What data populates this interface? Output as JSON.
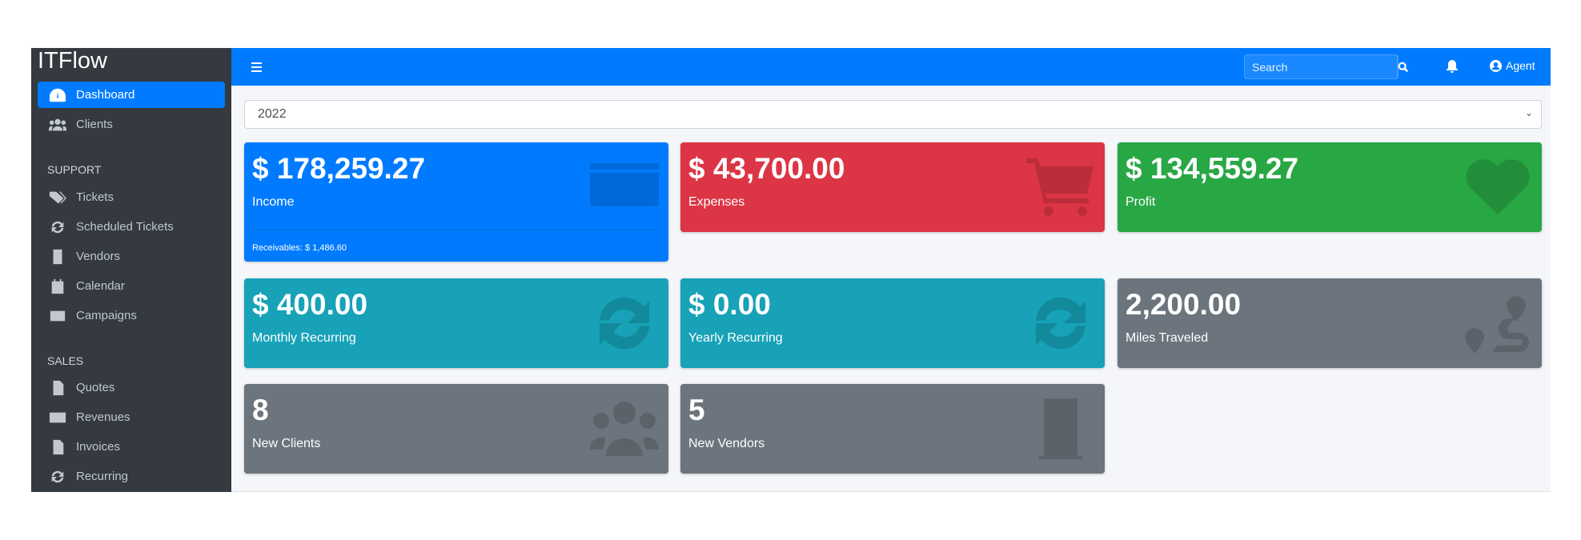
{
  "sidebar": {
    "brand": "ITFlow",
    "items": [
      {
        "label": "Dashboard",
        "icon": "tachometer-icon",
        "active": true
      },
      {
        "label": "Clients",
        "icon": "users-icon"
      }
    ],
    "support_header": "SUPPORT",
    "support": [
      {
        "label": "Tickets",
        "icon": "tags-icon"
      },
      {
        "label": "Scheduled Tickets",
        "icon": "sync-icon"
      },
      {
        "label": "Vendors",
        "icon": "building-icon"
      },
      {
        "label": "Calendar",
        "icon": "calendar-icon"
      },
      {
        "label": "Campaigns",
        "icon": "envelope-icon"
      }
    ],
    "sales_header": "SALES",
    "sales": [
      {
        "label": "Quotes",
        "icon": "file-icon"
      },
      {
        "label": "Revenues",
        "icon": "credit-card-icon"
      },
      {
        "label": "Invoices",
        "icon": "file-invoice-icon"
      },
      {
        "label": "Recurring",
        "icon": "sync-icon"
      }
    ]
  },
  "topbar": {
    "search_placeholder": "Search",
    "user": "Agent"
  },
  "filter": {
    "year": "2022"
  },
  "cards": {
    "income": {
      "value": "$ 178,259.27",
      "label": "Income",
      "receivables": "Receivables: $ 1,486.60",
      "color": "#007bff"
    },
    "expenses": {
      "value": "$ 43,700.00",
      "label": "Expenses",
      "color": "#dc3545"
    },
    "profit": {
      "value": "$ 134,559.27",
      "label": "Profit",
      "color": "#28a745"
    },
    "monthly": {
      "value": "$ 400.00",
      "label": "Monthly Recurring",
      "color": "#17a2b8"
    },
    "yearly": {
      "value": "$ 0.00",
      "label": "Yearly Recurring",
      "color": "#17a2b8"
    },
    "miles": {
      "value": "2,200.00",
      "label": "Miles Traveled",
      "color": "#6c757d"
    },
    "clients": {
      "value": "8",
      "label": "New Clients",
      "color": "#6c757d"
    },
    "vendors": {
      "value": "5",
      "label": "New Vendors",
      "color": "#6c757d"
    }
  }
}
